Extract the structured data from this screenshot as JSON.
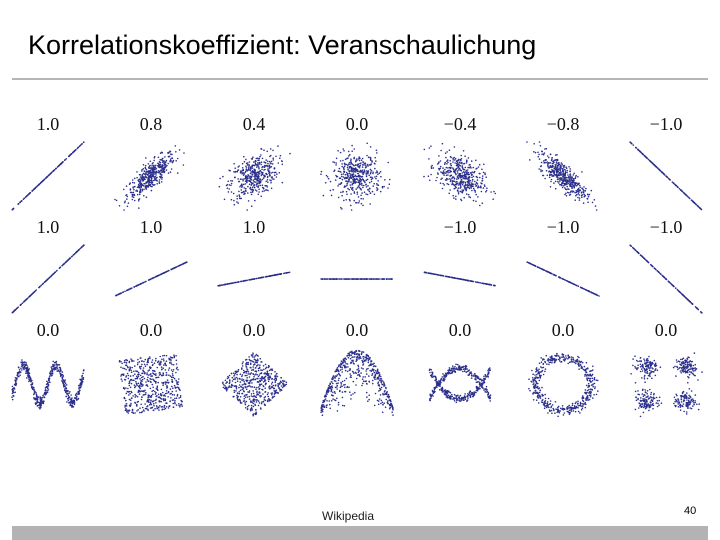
{
  "slide": {
    "title": "Korrelationskoeffizient: Veranschaulichung",
    "source": "Wikipedia",
    "page_number": "40"
  },
  "figure": {
    "point_color": "#2b2f8a",
    "rows": [
      {
        "panels": [
          {
            "label": "1.0",
            "kind": "corr",
            "r": 1.0
          },
          {
            "label": "0.8",
            "kind": "corr",
            "r": 0.8
          },
          {
            "label": "0.4",
            "kind": "corr",
            "r": 0.4
          },
          {
            "label": "0.0",
            "kind": "corr",
            "r": 0.0
          },
          {
            "label": "−0.4",
            "kind": "corr",
            "r": -0.4
          },
          {
            "label": "−0.8",
            "kind": "corr",
            "r": -0.8
          },
          {
            "label": "−1.0",
            "kind": "corr",
            "r": -1.0
          }
        ]
      },
      {
        "panels": [
          {
            "label": "1.0",
            "kind": "line",
            "slope": 1.0
          },
          {
            "label": "1.0",
            "kind": "line",
            "slope": 0.5
          },
          {
            "label": "1.0",
            "kind": "line",
            "slope": 0.2
          },
          {
            "label": "",
            "kind": "line",
            "slope": 0.0
          },
          {
            "label": "−1.0",
            "kind": "line",
            "slope": -0.2
          },
          {
            "label": "−1.0",
            "kind": "line",
            "slope": -0.5
          },
          {
            "label": "−1.0",
            "kind": "line",
            "slope": -1.0
          }
        ]
      },
      {
        "panels": [
          {
            "label": "0.0",
            "kind": "wave"
          },
          {
            "label": "0.0",
            "kind": "square"
          },
          {
            "label": "0.0",
            "kind": "diamond"
          },
          {
            "label": "0.0",
            "kind": "parabola"
          },
          {
            "label": "0.0",
            "kind": "cross"
          },
          {
            "label": "0.0",
            "kind": "ring"
          },
          {
            "label": "0.0",
            "kind": "clusters"
          }
        ]
      }
    ]
  }
}
